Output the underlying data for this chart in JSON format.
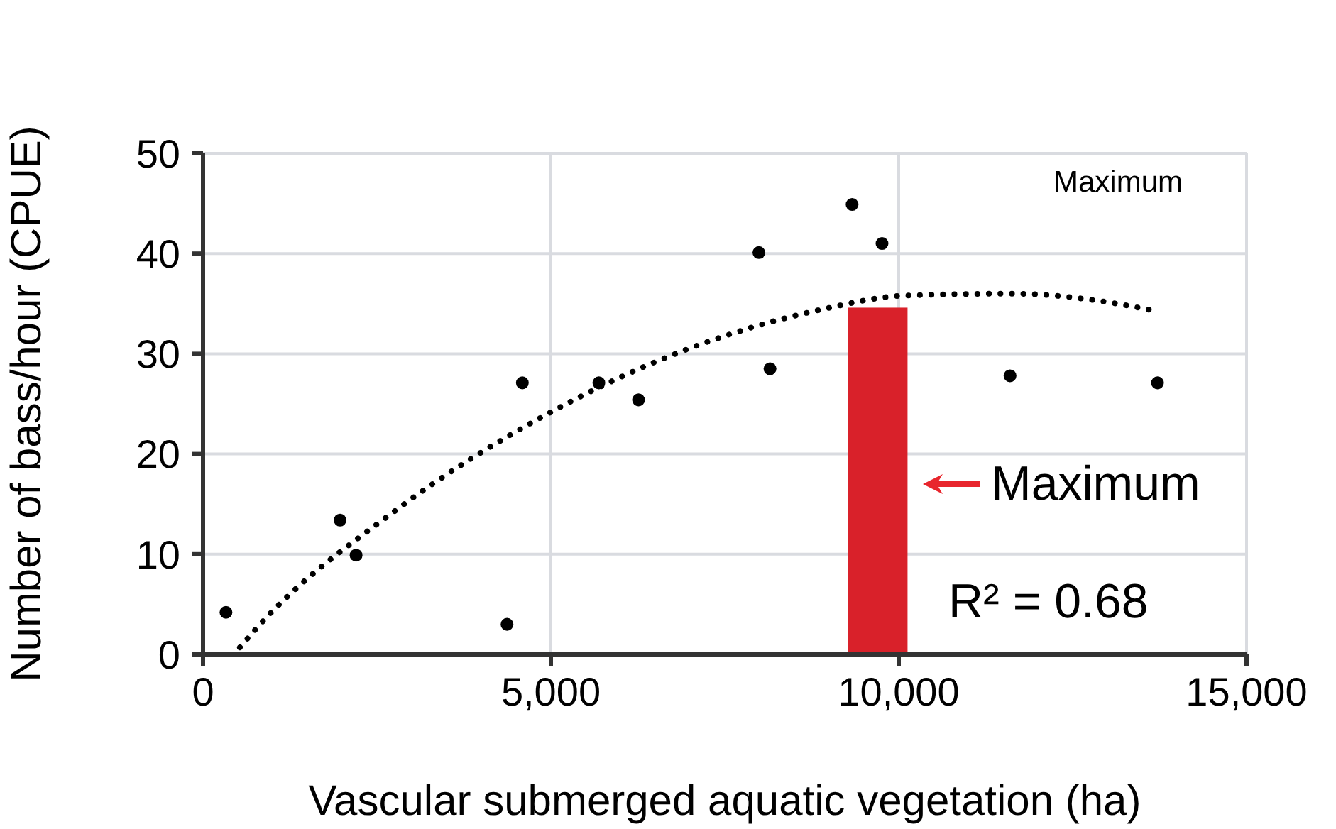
{
  "chart_data": {
    "type": "scatter",
    "xlabel": "Vascular submerged aquatic vegetation (ha)",
    "ylabel": "Number of bass/hour (CPUE)",
    "xlim": [
      0,
      15000
    ],
    "xticks": [
      0,
      {
        "value": 5000,
        "label": "5,000"
      },
      {
        "value": 10000,
        "label": "10,000"
      },
      {
        "value": 15000,
        "label": "15,000"
      }
    ],
    "ylim": [
      0,
      50
    ],
    "yticks": [
      0,
      10,
      20,
      30,
      40,
      50
    ],
    "grid": true,
    "series": [
      {
        "color": "#000000",
        "marker": "circle",
        "x": [
          330,
          1970,
          2200,
          4370,
          4590,
          5690,
          6260,
          7990,
          8150,
          9330,
          9760,
          11600,
          13720
        ],
        "values": [
          4.2,
          13.4,
          9.9,
          3.0,
          27.1,
          27.1,
          25.4,
          40.1,
          28.5,
          44.9,
          41.0,
          27.8,
          27.1
        ]
      },
      {
        "type": "line",
        "color": "#000000",
        "line_style": "dotted",
        "marker": "none",
        "x": [
          530,
          755,
          2755,
          4900,
          6940,
          8880,
          10080,
          11630,
          12860,
          13670
        ],
        "values": [
          0.7,
          2.5,
          14.3,
          23.8,
          30.4,
          34.4,
          35.8,
          36.0,
          35.3,
          34.3
        ]
      },
      {
        "type": "bar",
        "color": "#d9212a",
        "x": [
          9700
        ],
        "values": [
          34.6
        ]
      }
    ],
    "annotations": [
      "Maximum",
      "Maximum",
      "R² = 0.68"
    ]
  }
}
